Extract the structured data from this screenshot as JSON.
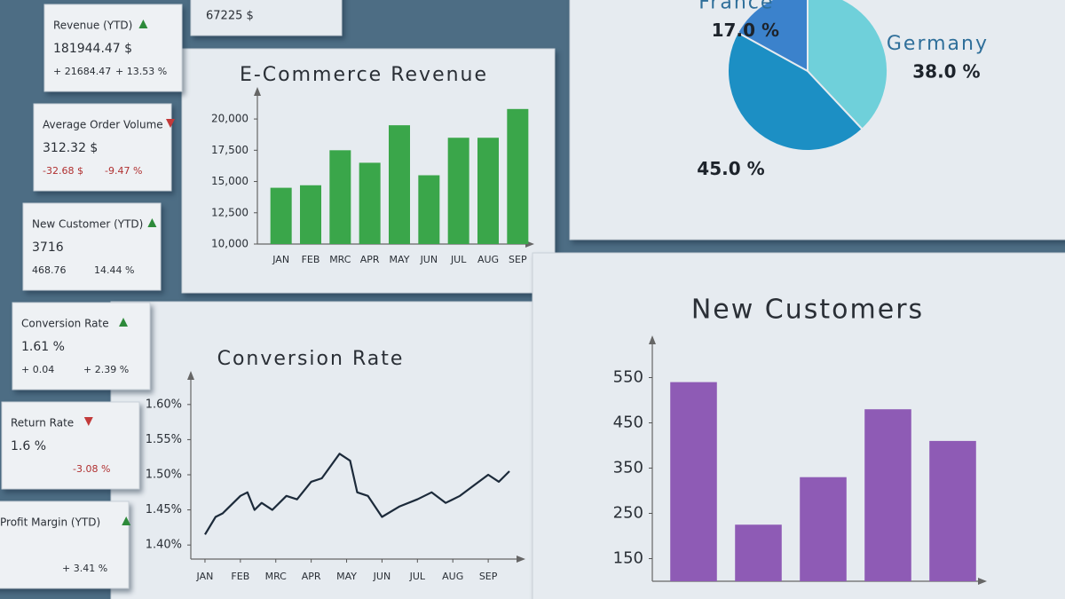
{
  "kpis": [
    {
      "title": "Revenue (YTD)",
      "trend": "up",
      "value": "181944.47 $",
      "change": "+ 21684.47",
      "change_pct": "+ 13.53 %"
    },
    {
      "title": "Average Order Volume",
      "trend": "down",
      "value": "312.32 $",
      "change": "-32.68 $",
      "change_pct": "-9.47 %"
    },
    {
      "title": "New Customer (YTD)",
      "trend": "up",
      "value": "3716",
      "change": "468.76",
      "change_pct": "14.44 %"
    },
    {
      "title": "Conversion Rate",
      "trend": "up",
      "value": "1.61 %",
      "change": "+ 0.04",
      "change_pct": "+ 2.39 %"
    },
    {
      "title": "Return Rate",
      "trend": "down",
      "value": "1.6 %",
      "change_pct": "-3.08 %"
    },
    {
      "title": "Profit Margin (YTD)",
      "trend": "up",
      "change_pct": "+ 3.41 %"
    }
  ],
  "top_card": {
    "value": "67225 $"
  },
  "chart_data": [
    {
      "type": "bar",
      "title": "E-Commerce Revenue",
      "categories": [
        "JAN",
        "FEB",
        "MRC",
        "APR",
        "MAY",
        "JUN",
        "JUL",
        "AUG",
        "SEP"
      ],
      "values": [
        14500,
        14700,
        17500,
        16500,
        19500,
        15500,
        18500,
        18500,
        20800
      ],
      "color": "#3aa64a",
      "ylim": [
        10000,
        21000
      ],
      "yticks": [
        {
          "value": 10000,
          "label": "10,000"
        },
        {
          "value": 12500,
          "label": "12,500"
        },
        {
          "value": 15000,
          "label": "15,000"
        },
        {
          "value": 17500,
          "label": "17,500"
        },
        {
          "value": 20000,
          "label": "20,000"
        }
      ]
    },
    {
      "type": "pie",
      "categories": [
        null,
        "France",
        "Germany"
      ],
      "values": [
        45,
        17,
        38
      ],
      "value_labels": [
        "45.0 %",
        "17.0 %",
        "38.0 %"
      ],
      "colors": [
        "#1c8fc4",
        "#3b82cc",
        "#6fd0da"
      ]
    },
    {
      "type": "line",
      "title": "Conversion Rate",
      "x": [
        0,
        0.3,
        0.5,
        1.0,
        1.2,
        1.4,
        1.6,
        1.9,
        2.3,
        2.6,
        3.0,
        3.3,
        3.8,
        4.1,
        4.3,
        4.6,
        5.0,
        5.5,
        6.0,
        6.4,
        6.8,
        7.2,
        7.6,
        8.0,
        8.3,
        8.6
      ],
      "values": [
        1.415,
        1.44,
        1.445,
        1.47,
        1.475,
        1.45,
        1.46,
        1.45,
        1.47,
        1.465,
        1.49,
        1.495,
        1.53,
        1.52,
        1.475,
        1.47,
        1.44,
        1.455,
        1.465,
        1.475,
        1.46,
        1.47,
        1.485,
        1.5,
        1.49,
        1.505
      ],
      "color": "#1c2a3a",
      "xlim": [
        -0.4,
        9
      ],
      "ylim": [
        1.38,
        1.62
      ],
      "xticks": [
        {
          "value": 0,
          "label": "JAN"
        },
        {
          "value": 1,
          "label": "FEB"
        },
        {
          "value": 2,
          "label": "MRC"
        },
        {
          "value": 3,
          "label": "APR"
        },
        {
          "value": 4,
          "label": "MAY"
        },
        {
          "value": 5,
          "label": "JUN"
        },
        {
          "value": 6,
          "label": "JUL"
        },
        {
          "value": 7,
          "label": "AUG"
        },
        {
          "value": 8,
          "label": "SEP"
        }
      ],
      "yticks": [
        {
          "value": 1.4,
          "label": "1.40%"
        },
        {
          "value": 1.45,
          "label": "1.45%"
        },
        {
          "value": 1.5,
          "label": "1.50%"
        },
        {
          "value": 1.55,
          "label": "1.55%"
        },
        {
          "value": 1.6,
          "label": "1.60%"
        }
      ]
    },
    {
      "type": "bar",
      "title": "New Customers",
      "categories": [
        null,
        null,
        null,
        null,
        null
      ],
      "values": [
        540,
        225,
        330,
        480,
        410
      ],
      "color": "#8e5bb5",
      "ylim": [
        100,
        600
      ],
      "yticks": [
        150,
        250,
        350,
        450,
        550
      ]
    }
  ]
}
